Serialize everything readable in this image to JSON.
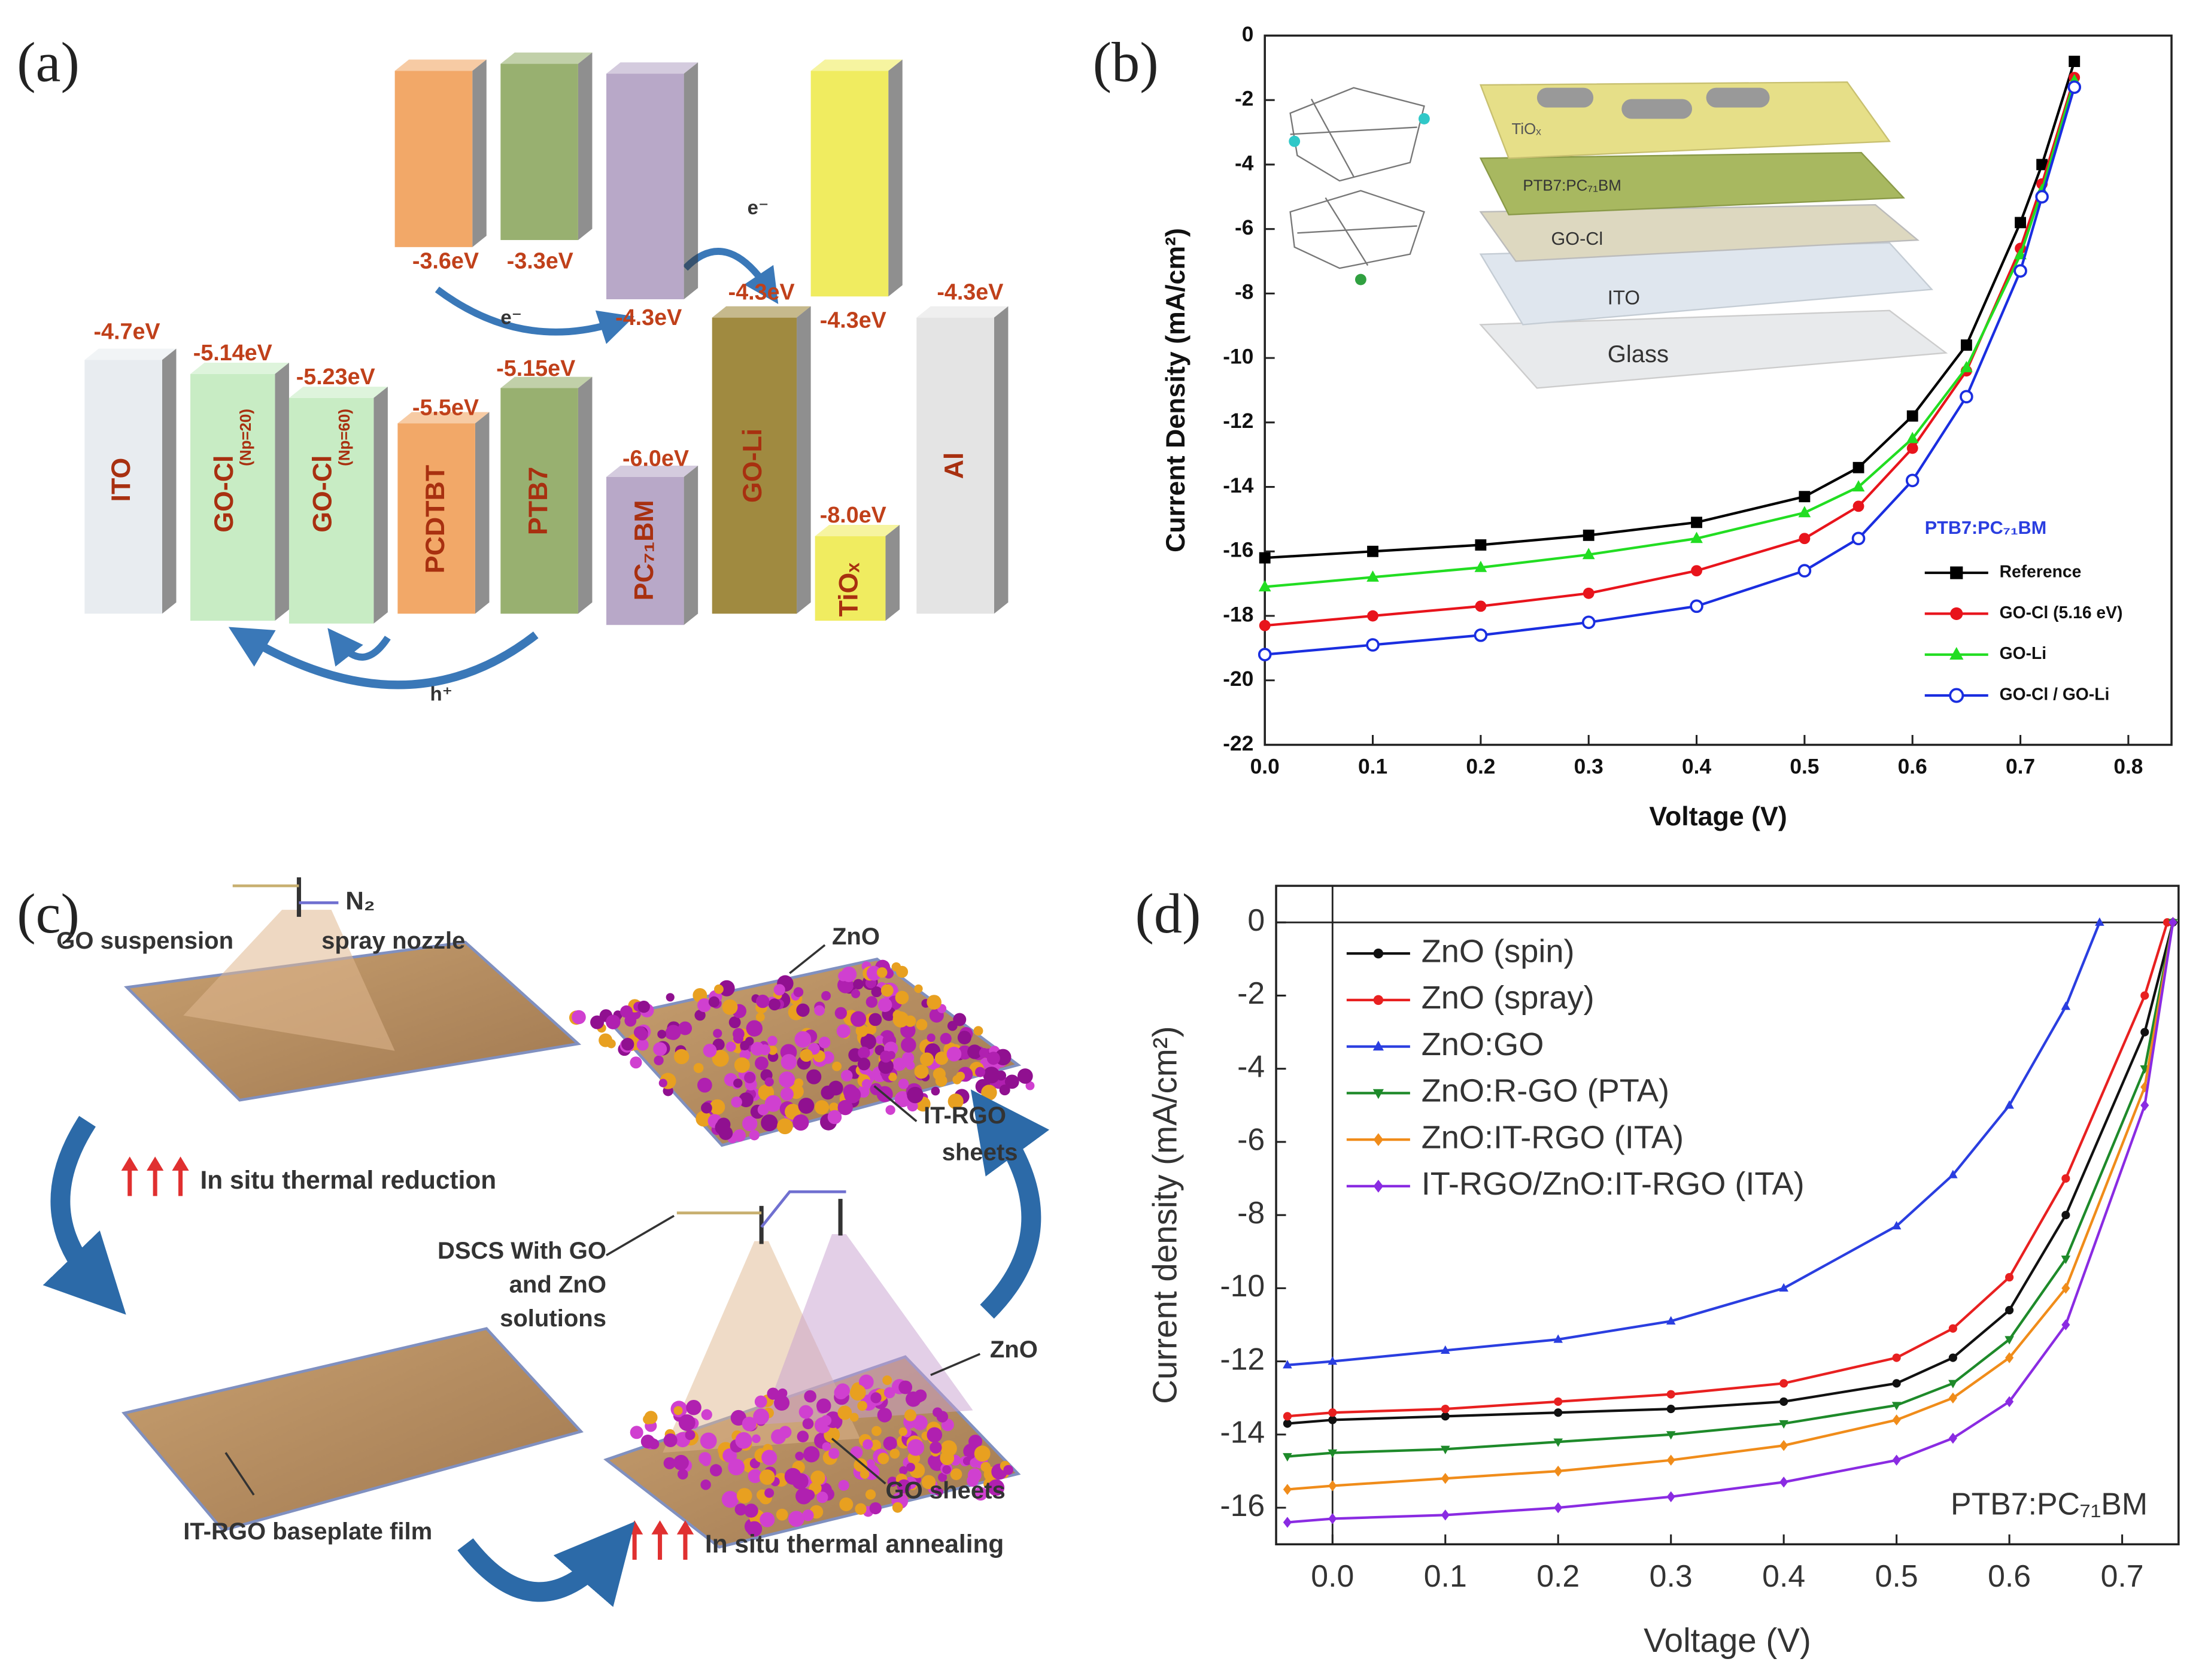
{
  "panel_a": {
    "panel_label": "(a)",
    "layers": [
      {
        "name": "ITO",
        "levels": [
          "-4.7eV"
        ]
      },
      {
        "name": "GO-Cl",
        "subscript": "(Np=20)",
        "levels": [
          "-5.14eV"
        ]
      },
      {
        "name": "GO-Cl",
        "subscript": "(Np=60)",
        "levels": [
          "-5.23eV"
        ]
      },
      {
        "name": "PCDTBT",
        "levels": [
          "-3.6eV",
          "-5.5eV"
        ]
      },
      {
        "name": "PTB7",
        "levels": [
          "-3.3eV",
          "-5.15eV"
        ]
      },
      {
        "name": "PC₇₁BM",
        "levels": [
          "-4.3eV",
          "-6.0eV"
        ]
      },
      {
        "name": "GO-Li",
        "levels": [
          "-4.3eV"
        ]
      },
      {
        "name": "TiOₓ",
        "levels": [
          "-4.3eV",
          "-8.0eV"
        ]
      },
      {
        "name": "Al",
        "levels": [
          "-4.3eV"
        ]
      }
    ],
    "carriers": [
      "e⁻",
      "e⁻",
      "h⁺"
    ]
  },
  "panel_c": {
    "panel_label": "(c)",
    "gas": "N₂",
    "suspension": "GO suspension",
    "nozzle": "spray nozzle",
    "step_reduction": "In situ thermal reduction",
    "zno_top": "ZnO",
    "sheets_label": [
      "IT-RGO",
      "sheets"
    ],
    "dscs_label": [
      "DSCS With GO",
      "and ZnO",
      "solutions"
    ],
    "zno_bottom": "ZnO",
    "go_sheets": "GO sheets",
    "baseplate": "IT-RGO baseplate film",
    "step_annealing": "In situ thermal annealing"
  },
  "chart_data": [
    {
      "type": "line",
      "panel_label": "(b)",
      "xlabel": "Voltage (V)",
      "ylabel": "Current Density (mA/cm²)",
      "xlim": [
        0,
        0.84
      ],
      "ylim": [
        -22,
        0
      ],
      "xticks": [
        {
          "value": 0,
          "label": "0.0"
        },
        0.1,
        0.2,
        0.3,
        0.4,
        0.5,
        0.6,
        0.7,
        0.8
      ],
      "yticks": [
        -22,
        -20,
        -18,
        -16,
        -14,
        -12,
        -10,
        -8,
        -6,
        -4,
        -2,
        0
      ],
      "legend": "lower right",
      "legend_title": "PTB7:PC₇₁BM",
      "inset_labels": [
        "TiOₓ",
        "PTB7:PC₇₁BM",
        "GO-Cl",
        "ITO",
        "Glass"
      ],
      "x": [
        0,
        0.1,
        0.2,
        0.3,
        0.4,
        0.5,
        0.55,
        0.6,
        0.65,
        0.7,
        0.72,
        0.75
      ],
      "series": [
        {
          "name": "Reference",
          "color": "#000000",
          "marker": "square",
          "values": [
            -16.2,
            -16.0,
            -15.8,
            -15.5,
            -15.1,
            -14.3,
            -13.4,
            -11.8,
            -9.6,
            -5.8,
            -4.0,
            -0.8
          ]
        },
        {
          "name": "GO-Cl (5.16 eV)",
          "color": "#e8141c",
          "marker": "circle",
          "values": [
            -18.3,
            -18.0,
            -17.7,
            -17.3,
            -16.6,
            -15.6,
            -14.6,
            -12.8,
            -10.4,
            -6.6,
            -4.6,
            -1.3
          ]
        },
        {
          "name": "GO-Li",
          "color": "#22dd22",
          "marker": "triangle",
          "values": [
            -17.1,
            -16.8,
            -16.5,
            -16.1,
            -15.6,
            -14.8,
            -14.0,
            -12.5,
            -10.3,
            -6.8,
            -4.8,
            -1.4
          ]
        },
        {
          "name": "GO-Cl / GO-Li",
          "color": "#1a2ee0",
          "marker": "open-circle",
          "values": [
            -19.2,
            -18.9,
            -18.6,
            -18.2,
            -17.7,
            -16.6,
            -15.6,
            -13.8,
            -11.2,
            -7.3,
            -5.0,
            -1.6
          ]
        }
      ]
    },
    {
      "type": "line",
      "panel_label": "(d)",
      "xlabel": "Voltage (V)",
      "ylabel": "Current density (mA/cm²)",
      "xlim": [
        -0.05,
        0.75
      ],
      "ylim": [
        -17,
        1
      ],
      "xticks": [
        {
          "value": 0,
          "label": "0.0"
        },
        0.1,
        0.2,
        0.3,
        0.4,
        0.5,
        0.6,
        0.7
      ],
      "yticks": [
        -16,
        -14,
        -12,
        -10,
        -8,
        -6,
        -4,
        -2,
        0
      ],
      "legend": "upper left",
      "annotation": "PTB7:PC₇₁BM",
      "series": [
        {
          "name": "ZnO (spin)",
          "color": "#111111",
          "marker": "circle",
          "x": [
            -0.04,
            0,
            0.1,
            0.2,
            0.3,
            0.4,
            0.5,
            0.55,
            0.6,
            0.65,
            0.72,
            0.745
          ],
          "values": [
            -13.7,
            -13.6,
            -13.5,
            -13.4,
            -13.3,
            -13.1,
            -12.6,
            -11.9,
            -10.6,
            -8.0,
            -3.0,
            0
          ]
        },
        {
          "name": "ZnO (spray)",
          "color": "#e82020",
          "marker": "circle",
          "x": [
            -0.04,
            0,
            0.1,
            0.2,
            0.3,
            0.4,
            0.5,
            0.55,
            0.6,
            0.65,
            0.72,
            0.74
          ],
          "values": [
            -13.5,
            -13.4,
            -13.3,
            -13.1,
            -12.9,
            -12.6,
            -11.9,
            -11.1,
            -9.7,
            -7.0,
            -2.0,
            0
          ]
        },
        {
          "name": "ZnO:GO",
          "color": "#2a3ee0",
          "marker": "triangle",
          "x": [
            -0.04,
            0,
            0.1,
            0.2,
            0.3,
            0.4,
            0.5,
            0.55,
            0.6,
            0.65,
            0.68
          ],
          "values": [
            -12.1,
            -12.0,
            -11.7,
            -11.4,
            -10.9,
            -10.0,
            -8.3,
            -6.9,
            -5.0,
            -2.3,
            0
          ]
        },
        {
          "name": "ZnO:R-GO (PTA)",
          "color": "#1e8a2a",
          "marker": "down-triangle",
          "x": [
            -0.04,
            0,
            0.1,
            0.2,
            0.3,
            0.4,
            0.5,
            0.55,
            0.6,
            0.65,
            0.72,
            0.745
          ],
          "values": [
            -14.6,
            -14.5,
            -14.4,
            -14.2,
            -14.0,
            -13.7,
            -13.2,
            -12.6,
            -11.4,
            -9.2,
            -4.0,
            0
          ]
        },
        {
          "name": "ZnO:IT-RGO (ITA)",
          "color": "#f08c1a",
          "marker": "diamond",
          "x": [
            -0.04,
            0,
            0.1,
            0.2,
            0.3,
            0.4,
            0.5,
            0.55,
            0.6,
            0.65,
            0.72,
            0.745
          ],
          "values": [
            -15.5,
            -15.4,
            -15.2,
            -15.0,
            -14.7,
            -14.3,
            -13.6,
            -13.0,
            -11.9,
            -10.0,
            -4.5,
            0
          ]
        },
        {
          "name": "IT-RGO/ZnO:IT-RGO (ITA)",
          "color": "#8a2be2",
          "marker": "diamond",
          "x": [
            -0.04,
            0,
            0.1,
            0.2,
            0.3,
            0.4,
            0.5,
            0.55,
            0.6,
            0.65,
            0.72,
            0.745
          ],
          "values": [
            -16.4,
            -16.3,
            -16.2,
            -16.0,
            -15.7,
            -15.3,
            -14.7,
            -14.1,
            -13.1,
            -11.0,
            -5.0,
            0
          ]
        }
      ]
    }
  ]
}
